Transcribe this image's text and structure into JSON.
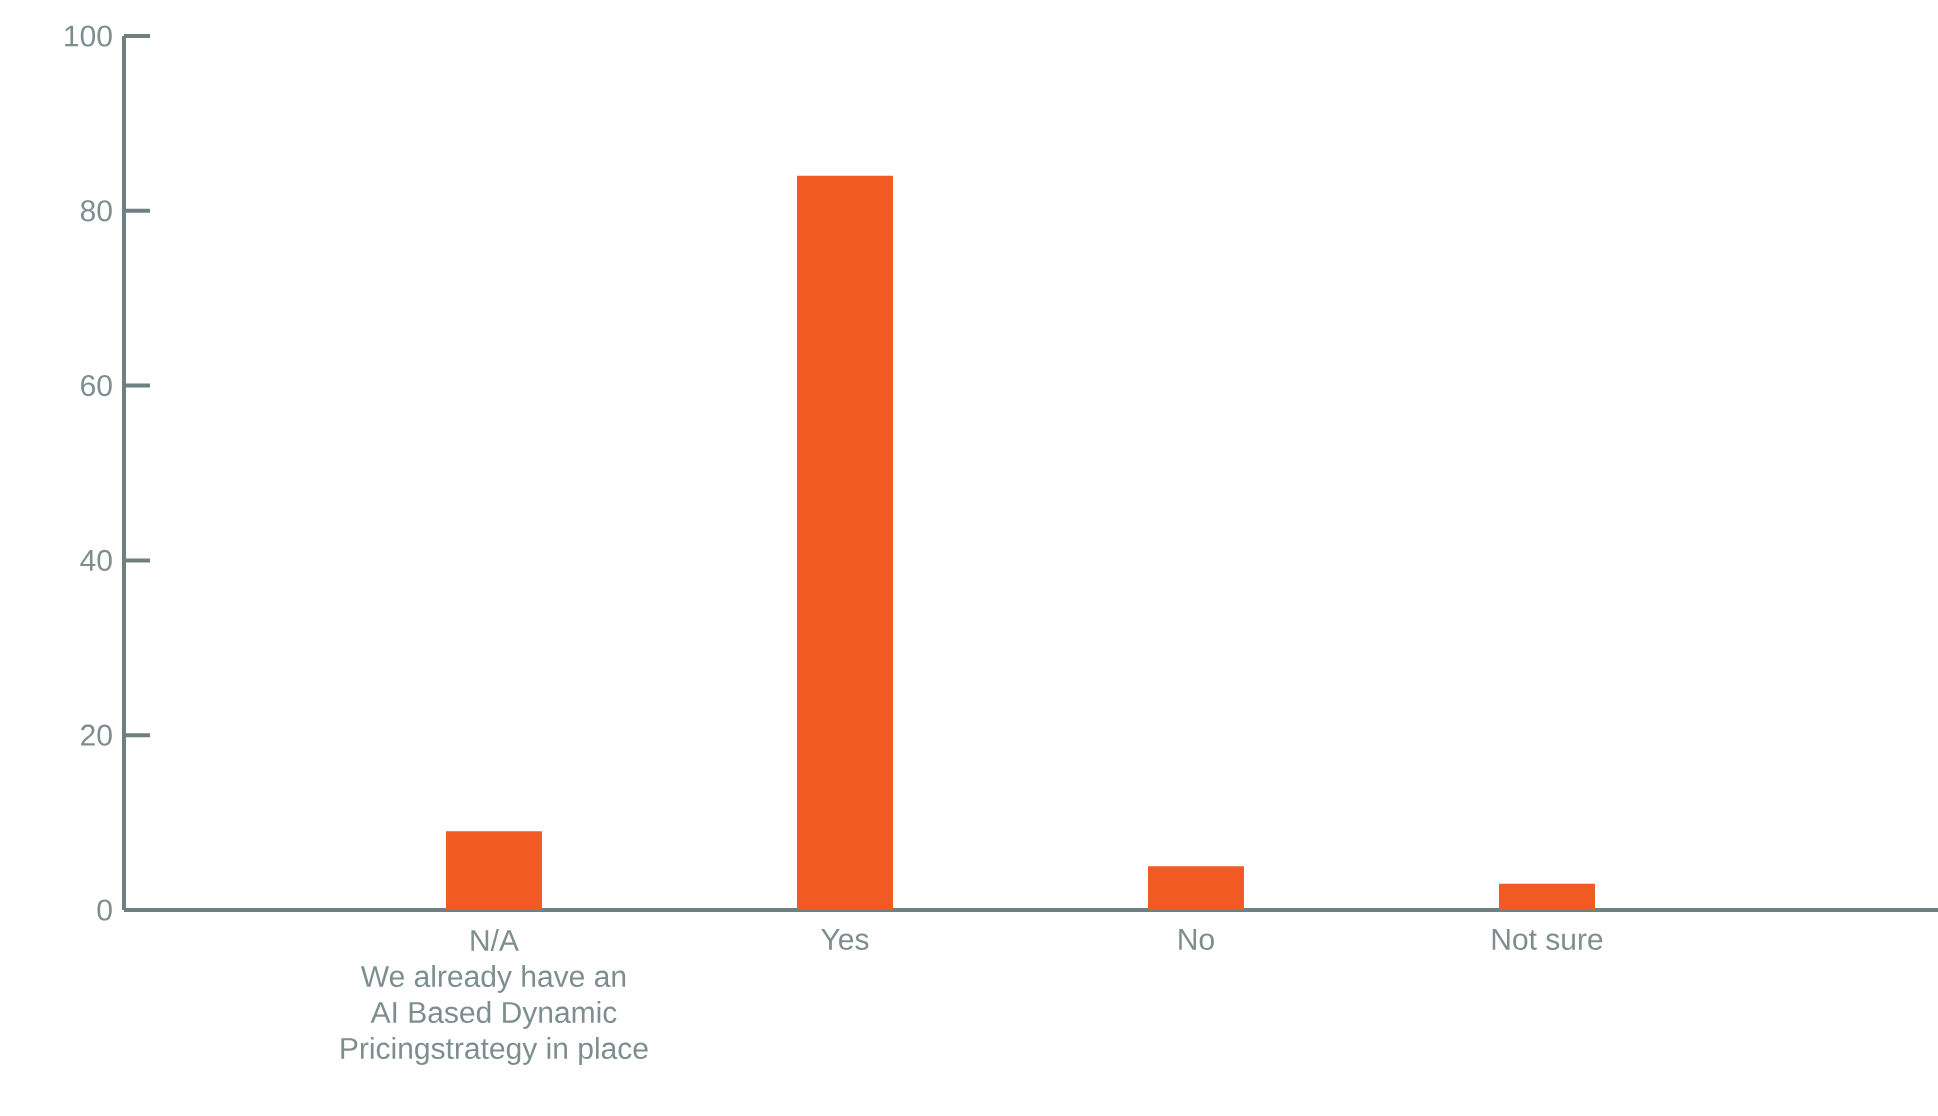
{
  "chart_data": {
    "type": "bar",
    "categories": [
      "N/A\nWe already have an\nAI Based Dynamic\nPricingstrategy in place",
      "Yes",
      "No",
      "Not sure"
    ],
    "values": [
      9,
      84,
      5,
      3
    ],
    "color": "#f15a22",
    "ylim": [
      0,
      100
    ],
    "yticks": [
      0,
      20,
      40,
      60,
      80,
      100
    ]
  }
}
